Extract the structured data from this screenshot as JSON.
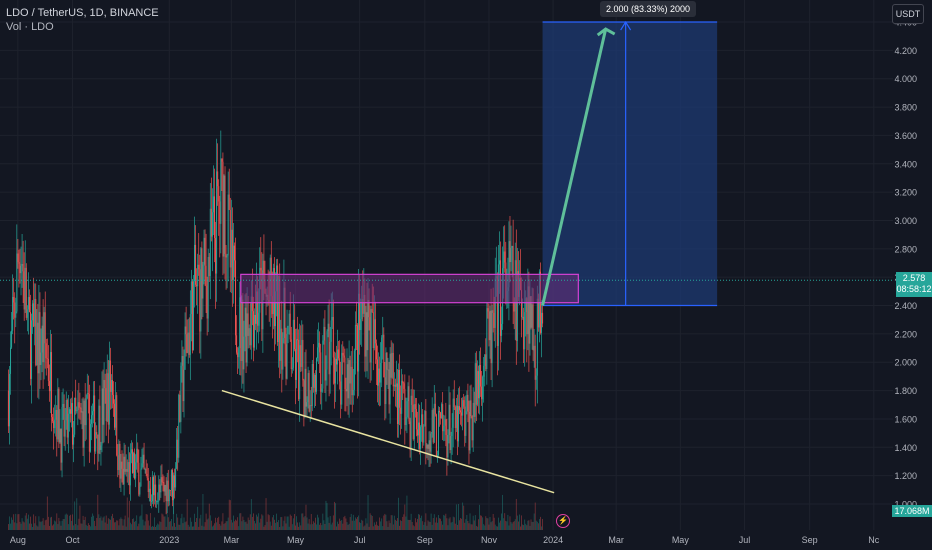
{
  "header": {
    "symbol": "LDO / TetherUS, 1D, BINANCE",
    "volume_label": "Vol · LDO",
    "currency_button": "USDT"
  },
  "price_tag": {
    "price": "2.578",
    "countdown": "08:58:12"
  },
  "volume_tag": "17.068M",
  "measure_label": "2.000 (83.33%) 2000",
  "flash_icon": "lightning-icon",
  "colors": {
    "background": "#131722",
    "up": "#26a69a",
    "down": "#ef5350",
    "zone_border": "#d442d4",
    "zone_fill": "#6a2d78",
    "target_fill": "#1e3a72",
    "target_border": "#2962ff",
    "arrow": "#5fbf9a",
    "trendline": "#e8e3a0"
  },
  "chart_data": {
    "type": "candlestick",
    "title": "LDO / TetherUS, 1D, BINANCE",
    "xlabel": "",
    "ylabel": "",
    "x_ticks": [
      "Aug",
      "Oct",
      "2023",
      "Mar",
      "May",
      "Jul",
      "Sep",
      "Nov",
      "2024",
      "Mar",
      "May",
      "Jul",
      "Sep",
      "Nc"
    ],
    "y_ticks": [
      "1.000",
      "1.200",
      "1.400",
      "1.600",
      "1.800",
      "2.000",
      "2.200",
      "2.400",
      "2.600",
      "2.800",
      "3.000",
      "3.200",
      "3.400",
      "3.600",
      "3.800",
      "4.000",
      "4.200",
      "4.400"
    ],
    "ylim": [
      0.98,
      4.4
    ],
    "last_price": 2.578,
    "price_path": [
      [
        "2022-08-01",
        1.8
      ],
      [
        "2022-08-12",
        2.9
      ],
      [
        "2022-08-20",
        2.2
      ],
      [
        "2022-09-05",
        2.1
      ],
      [
        "2022-09-20",
        1.5
      ],
      [
        "2022-10-10",
        1.6
      ],
      [
        "2022-10-25",
        1.55
      ],
      [
        "2022-11-08",
        1.9
      ],
      [
        "2022-11-15",
        1.2
      ],
      [
        "2022-12-01",
        1.25
      ],
      [
        "2022-12-20",
        1.05
      ],
      [
        "2023-01-05",
        1.15
      ],
      [
        "2023-01-15",
        2.0
      ],
      [
        "2023-01-25",
        2.5
      ],
      [
        "2023-02-05",
        2.6
      ],
      [
        "2023-02-15",
        3.0
      ],
      [
        "2023-02-22",
        3.2
      ],
      [
        "2023-03-01",
        2.6
      ],
      [
        "2023-03-10",
        2.2
      ],
      [
        "2023-03-20",
        2.4
      ],
      [
        "2023-04-01",
        2.45
      ],
      [
        "2023-04-12",
        2.4
      ],
      [
        "2023-04-25",
        2.1
      ],
      [
        "2023-05-10",
        1.85
      ],
      [
        "2023-05-25",
        1.9
      ],
      [
        "2023-06-05",
        2.2
      ],
      [
        "2023-06-12",
        1.8
      ],
      [
        "2023-06-25",
        2.0
      ],
      [
        "2023-07-05",
        2.4
      ],
      [
        "2023-07-15",
        2.1
      ],
      [
        "2023-08-01",
        1.9
      ],
      [
        "2023-08-18",
        1.6
      ],
      [
        "2023-09-01",
        1.55
      ],
      [
        "2023-09-15",
        1.5
      ],
      [
        "2023-10-01",
        1.55
      ],
      [
        "2023-10-15",
        1.6
      ],
      [
        "2023-10-25",
        2.0
      ],
      [
        "2023-11-05",
        2.2
      ],
      [
        "2023-11-12",
        2.5
      ],
      [
        "2023-11-20",
        2.6
      ],
      [
        "2023-11-28",
        2.4
      ],
      [
        "2023-12-08",
        2.45
      ],
      [
        "2023-12-15",
        2.1
      ],
      [
        "2023-12-22",
        2.578
      ]
    ],
    "drawings": {
      "resistance_zone": {
        "x": [
          "2023-03-10",
          "2024-01-25"
        ],
        "y": [
          2.42,
          2.62
        ]
      },
      "trendline": {
        "from": [
          "2023-02-20",
          1.8
        ],
        "to": [
          "2024-01-02",
          1.08
        ]
      },
      "target_box": {
        "x": [
          "2023-12-22",
          "2024-06-05"
        ],
        "y": [
          2.4,
          4.4
        ]
      },
      "target_arrow": {
        "from": [
          "2023-12-22",
          2.4
        ],
        "to": [
          "2024-02-20",
          4.4
        ]
      },
      "measure_line_x": "2024-03-10"
    }
  }
}
